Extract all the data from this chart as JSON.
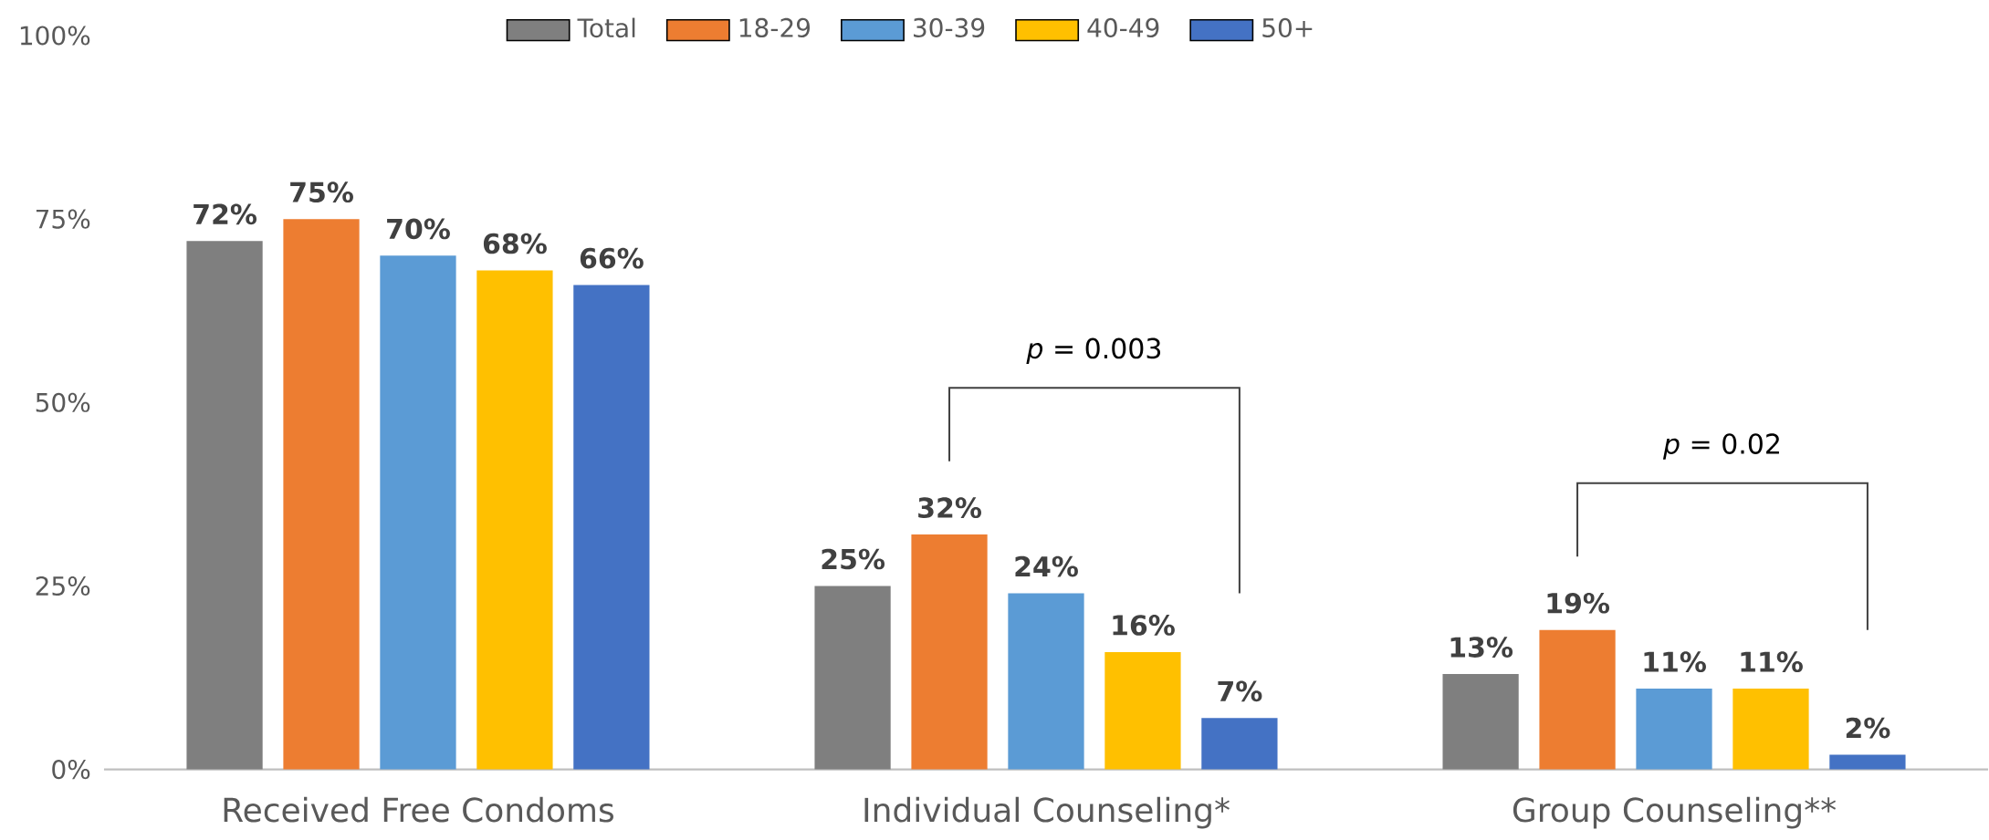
{
  "chart_data": {
    "type": "bar",
    "categories": [
      "Received Free Condoms",
      "Individual Counseling*",
      "Group Counseling**"
    ],
    "series": [
      {
        "name": "Total",
        "color": "#7f7f7f",
        "values": [
          72,
          25,
          13
        ],
        "value_labels": [
          "72%",
          "25%",
          "13%"
        ]
      },
      {
        "name": "18-29",
        "color": "#ed7d31",
        "values": [
          75,
          32,
          19
        ],
        "value_labels": [
          "75%",
          "32%",
          "19%"
        ]
      },
      {
        "name": "30-39",
        "color": "#5b9bd5",
        "values": [
          70,
          24,
          11
        ],
        "value_labels": [
          "70%",
          "24%",
          "11%"
        ]
      },
      {
        "name": "40-49",
        "color": "#ffc000",
        "values": [
          68,
          16,
          11
        ],
        "value_labels": [
          "68%",
          "16%",
          "11%"
        ]
      },
      {
        "name": "50+",
        "color": "#4472c4",
        "values": [
          66,
          7,
          2
        ],
        "value_labels": [
          "66%",
          "7%",
          "2%"
        ]
      }
    ],
    "ylim": [
      0,
      100
    ],
    "yticks": [
      {
        "value": 0,
        "label": "0%"
      },
      {
        "value": 25,
        "label": "25%"
      },
      {
        "value": 50,
        "label": "50%"
      },
      {
        "value": 75,
        "label": "75%"
      },
      {
        "value": 100,
        "label": "100%"
      }
    ],
    "legend": "top",
    "annotations": [
      "*p* = 0.003",
      "*p* = 0.02"
    ]
  }
}
